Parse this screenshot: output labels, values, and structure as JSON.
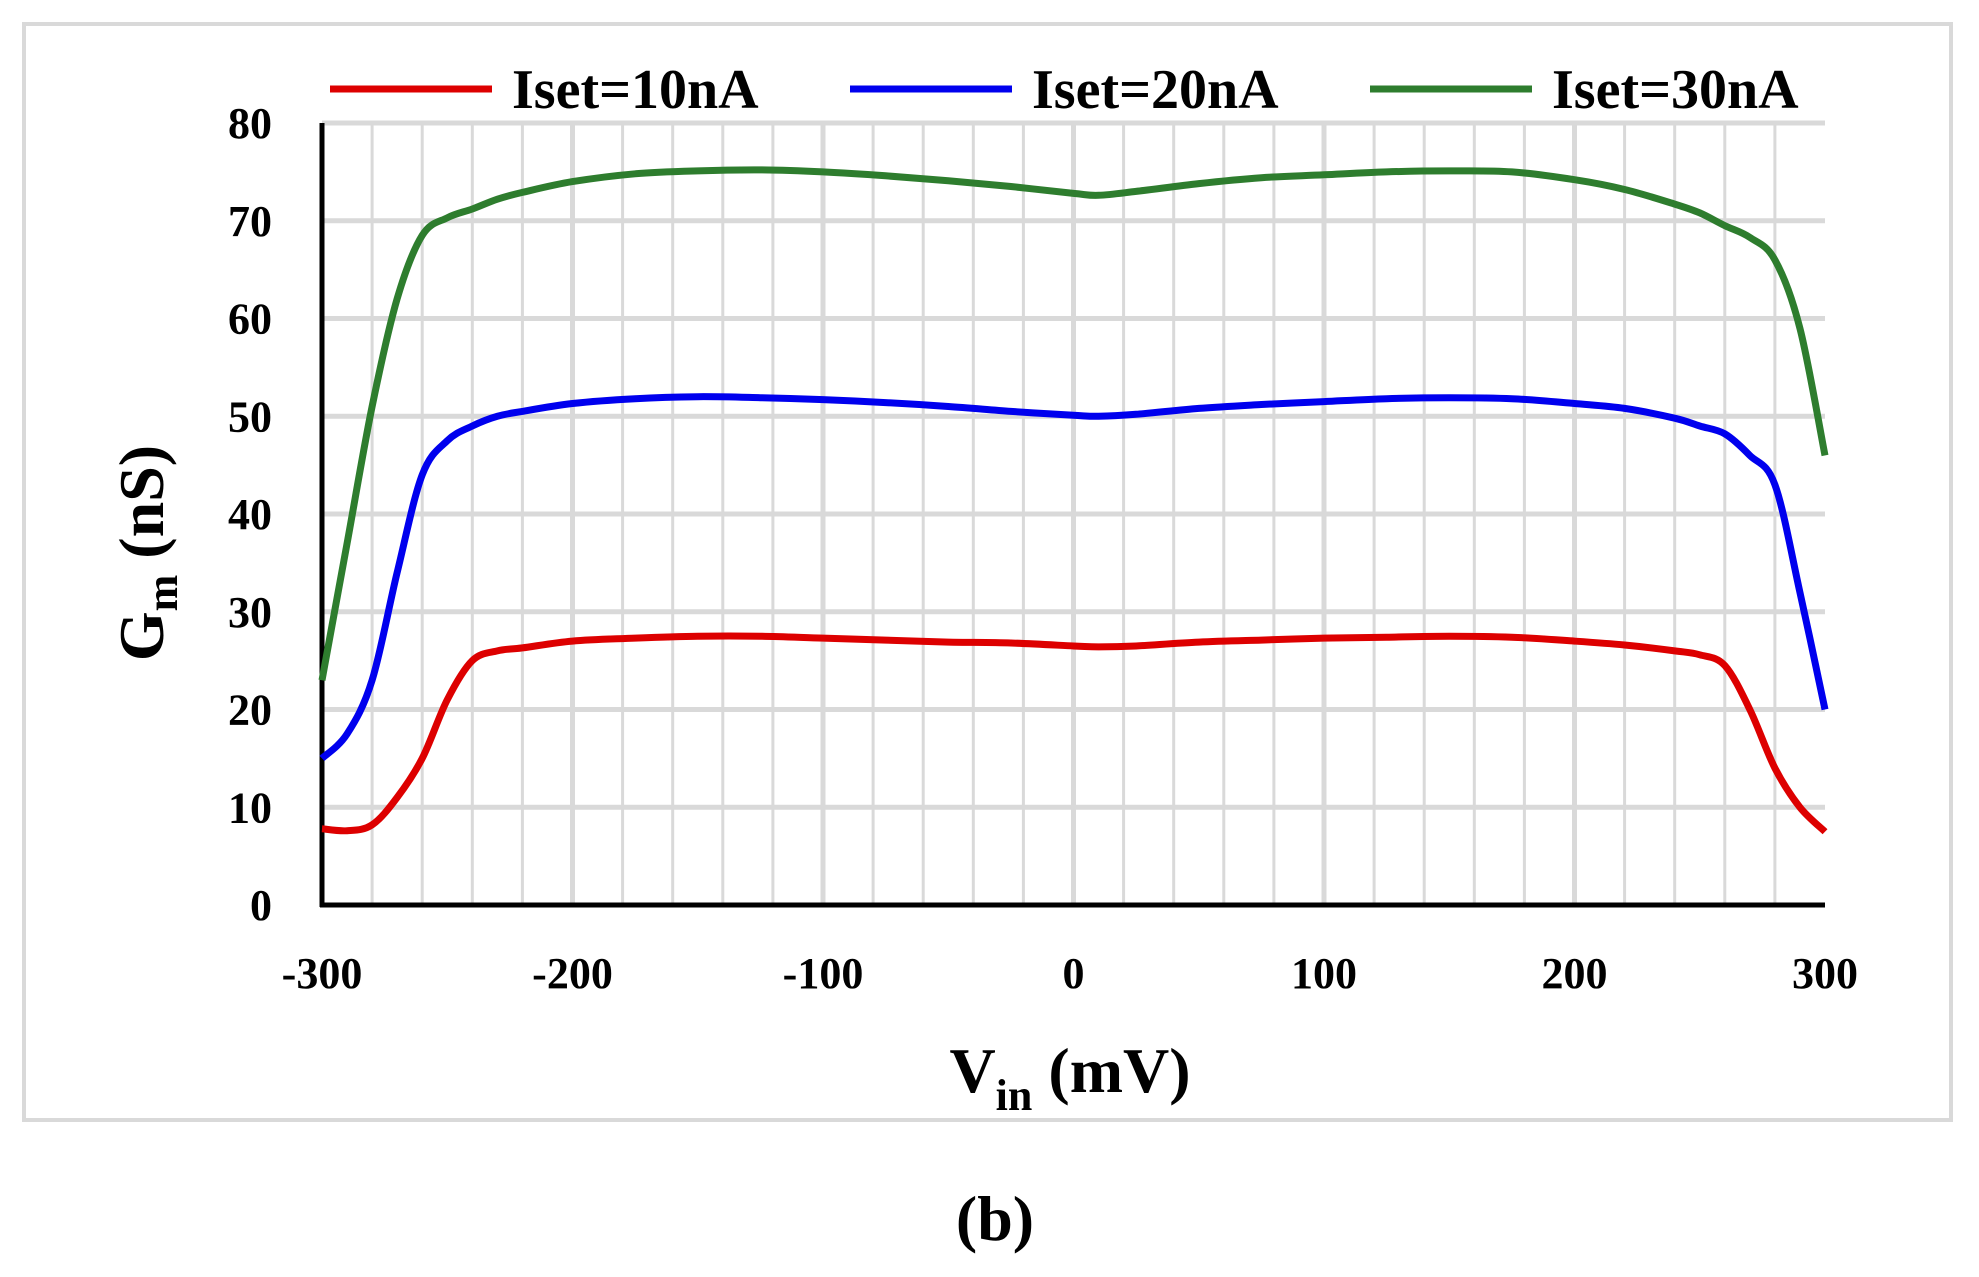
{
  "caption": "(b)",
  "chart_data": {
    "type": "line",
    "title": "",
    "xlabel": {
      "main": "V",
      "sub": "in",
      "unit": " (mV)"
    },
    "ylabel": {
      "main": "G",
      "sub": "m",
      "unit": " (nS)"
    },
    "xlim": [
      -300,
      300
    ],
    "ylim": [
      0,
      80
    ],
    "xticks": [
      -300,
      -200,
      -100,
      0,
      100,
      200,
      300
    ],
    "yticks": [
      0,
      10,
      20,
      30,
      40,
      50,
      60,
      70,
      80
    ],
    "grid": true,
    "legend_position": "top",
    "x": [
      -300,
      -290,
      -280,
      -270,
      -260,
      -250,
      -240,
      -230,
      -220,
      -200,
      -175,
      -150,
      -125,
      -100,
      -75,
      -50,
      -25,
      0,
      10,
      25,
      50,
      75,
      100,
      125,
      150,
      175,
      200,
      220,
      240,
      250,
      260,
      270,
      280,
      290,
      300
    ],
    "series": [
      {
        "name": "Iset=10nA",
        "color": "#dd0000",
        "values": [
          7.8,
          7.6,
          8.2,
          11,
          15,
          21,
          25,
          26,
          26.3,
          27,
          27.3,
          27.5,
          27.5,
          27.3,
          27.1,
          26.9,
          26.8,
          26.5,
          26.4,
          26.5,
          26.9,
          27.1,
          27.3,
          27.4,
          27.5,
          27.4,
          27,
          26.6,
          26,
          25.6,
          24.5,
          20,
          14,
          10,
          7.5
        ]
      },
      {
        "name": "Iset=20nA",
        "color": "#0000ee",
        "values": [
          15,
          17.5,
          23,
          34,
          44,
          47.5,
          49,
          50,
          50.5,
          51.3,
          51.8,
          52,
          51.9,
          51.7,
          51.4,
          51,
          50.5,
          50.1,
          50,
          50.2,
          50.8,
          51.2,
          51.5,
          51.8,
          51.9,
          51.8,
          51.3,
          50.8,
          49.8,
          49,
          48.2,
          46,
          43,
          32,
          20
        ]
      },
      {
        "name": "Iset=30nA",
        "color": "#2e7d2e",
        "values": [
          23,
          37,
          51,
          62,
          68.5,
          70.3,
          71.2,
          72.2,
          72.9,
          74,
          74.8,
          75.1,
          75.2,
          75,
          74.6,
          74.1,
          73.5,
          72.8,
          72.6,
          73,
          73.8,
          74.4,
          74.7,
          75,
          75.1,
          75,
          74.2,
          73.2,
          71.7,
          70.8,
          69.5,
          68.3,
          66,
          59,
          46
        ]
      }
    ]
  }
}
